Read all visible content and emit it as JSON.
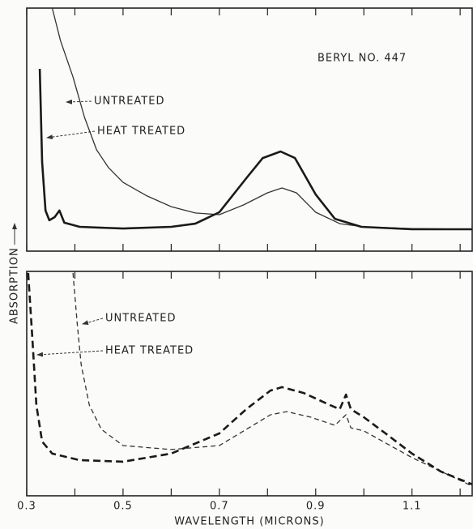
{
  "chart_data": [
    {
      "type": "line",
      "annotations": [
        "BERYL NO. 447",
        "UNTREATED",
        "HEAT TREATED"
      ],
      "ylabel": "ABSORPTION",
      "xlim": [
        0.3,
        1.225
      ],
      "ylim": [
        0,
        1
      ],
      "xtick_marks": [
        0.3,
        0.4,
        0.5,
        0.6,
        0.7,
        0.8,
        0.9,
        1.0,
        1.1,
        1.2
      ],
      "series": [
        {
          "name": "UNTREATED",
          "color": "#333333",
          "linewidth": 1.3,
          "style": "solid",
          "x": [
            0.353,
            0.37,
            0.396,
            0.42,
            0.445,
            0.47,
            0.5,
            0.55,
            0.6,
            0.65,
            0.7,
            0.75,
            0.8,
            0.83,
            0.86,
            0.9,
            0.95,
            1.0,
            1.1,
            1.225
          ],
          "values": [
            1.0,
            0.867,
            0.717,
            0.55,
            0.417,
            0.343,
            0.283,
            0.227,
            0.183,
            0.157,
            0.15,
            0.19,
            0.24,
            0.26,
            0.24,
            0.16,
            0.113,
            0.1,
            0.093,
            0.09
          ]
        },
        {
          "name": "HEAT TREATED",
          "color": "#1a1a1a",
          "linewidth": 2.6,
          "style": "solid",
          "x": [
            0.327,
            0.332,
            0.339,
            0.347,
            0.358,
            0.368,
            0.378,
            0.41,
            0.5,
            0.6,
            0.65,
            0.7,
            0.756,
            0.79,
            0.827,
            0.857,
            0.9,
            0.94,
            0.995,
            1.1,
            1.225
          ],
          "values": [
            0.75,
            0.367,
            0.167,
            0.127,
            0.14,
            0.167,
            0.117,
            0.1,
            0.093,
            0.1,
            0.113,
            0.16,
            0.3,
            0.383,
            0.41,
            0.383,
            0.233,
            0.133,
            0.1,
            0.09,
            0.09
          ]
        }
      ]
    },
    {
      "type": "line",
      "annotations": [
        "UNTREATED",
        "HEAT TREATED"
      ],
      "xlabel": "WAVELENGTH (MICRONS)",
      "xlim": [
        0.3,
        1.225
      ],
      "ylim": [
        0,
        1
      ],
      "xticks": [
        0.3,
        0.5,
        0.7,
        0.9,
        1.1
      ],
      "xtick_marks": [
        0.3,
        0.4,
        0.5,
        0.6,
        0.7,
        0.8,
        0.9,
        1.0,
        1.1,
        1.2
      ],
      "series": [
        {
          "name": "UNTREATED",
          "color": "#333333",
          "linewidth": 1.3,
          "style": "dashed",
          "x": [
            0.396,
            0.405,
            0.413,
            0.43,
            0.455,
            0.5,
            0.6,
            0.7,
            0.756,
            0.806,
            0.84,
            0.89,
            0.94,
            0.963,
            0.973,
            1.0,
            1.1,
            1.225
          ],
          "values": [
            0.993,
            0.765,
            0.585,
            0.404,
            0.296,
            0.224,
            0.206,
            0.224,
            0.296,
            0.361,
            0.375,
            0.35,
            0.314,
            0.361,
            0.303,
            0.289,
            0.17,
            0.043
          ]
        },
        {
          "name": "HEAT TREATED",
          "color": "#1a1a1a",
          "linewidth": 2.6,
          "style": "dashed",
          "x": [
            0.303,
            0.312,
            0.32,
            0.332,
            0.353,
            0.41,
            0.5,
            0.6,
            0.7,
            0.756,
            0.806,
            0.83,
            0.875,
            0.93,
            0.95,
            0.963,
            0.973,
            1.0,
            1.045,
            1.1,
            1.16,
            1.225
          ],
          "values": [
            0.993,
            0.693,
            0.404,
            0.242,
            0.188,
            0.159,
            0.152,
            0.188,
            0.278,
            0.386,
            0.469,
            0.484,
            0.458,
            0.404,
            0.386,
            0.451,
            0.386,
            0.35,
            0.278,
            0.188,
            0.108,
            0.051
          ]
        }
      ]
    }
  ]
}
